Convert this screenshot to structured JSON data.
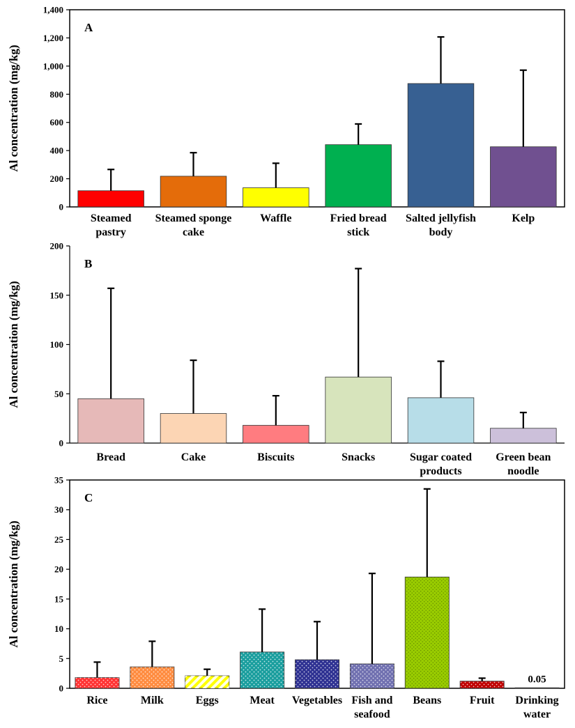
{
  "chart_data": [
    {
      "type": "bar",
      "panel_label": "A",
      "ylabel": "Al concentration (mg/kg)",
      "ylim": [
        0,
        1400
      ],
      "yticks": [
        0,
        200,
        400,
        600,
        800,
        1000,
        1200,
        1400
      ],
      "ytick_labels": [
        "0",
        "200",
        "400",
        "600",
        "800",
        "1,000",
        "1,200",
        "1,400"
      ],
      "categories": [
        [
          "Steamed",
          "pastry"
        ],
        [
          "Steamed sponge",
          "cake"
        ],
        [
          "Waffle"
        ],
        [
          "Fried bread",
          "stick"
        ],
        [
          "Salted jellyfish",
          "body"
        ],
        [
          "Kelp"
        ]
      ],
      "values": [
        115,
        218,
        136,
        442,
        876,
        427
      ],
      "error_upper": [
        266,
        385,
        310,
        589,
        1207,
        971
      ],
      "colors": [
        "#ff0000",
        "#e46c0a",
        "#ffff00",
        "#00b050",
        "#376092",
        "#705090"
      ],
      "patterns": [
        "solid",
        "solid",
        "solid",
        "solid",
        "solid",
        "solid"
      ],
      "box": "frame"
    },
    {
      "type": "bar",
      "panel_label": "B",
      "ylabel": "Al concentration (mg/kg)",
      "ylim": [
        0,
        200
      ],
      "yticks": [
        0,
        50,
        100,
        150,
        200
      ],
      "ytick_labels": [
        "0",
        "50",
        "100",
        "150",
        "200"
      ],
      "categories": [
        [
          "Bread"
        ],
        [
          "Cake"
        ],
        [
          "Biscuits"
        ],
        [
          "Snacks"
        ],
        [
          "Sugar coated",
          "products"
        ],
        [
          "Green bean",
          "noodle"
        ]
      ],
      "values": [
        45,
        30,
        18,
        67,
        46,
        15
      ],
      "error_upper": [
        157,
        84,
        48,
        177,
        83,
        31
      ],
      "colors": [
        "#e6b9b8",
        "#fcd5b4",
        "#ff7c80",
        "#d7e4bc",
        "#b7dde8",
        "#ccc0da"
      ],
      "patterns": [
        "solid",
        "solid",
        "solid",
        "solid",
        "solid",
        "solid"
      ],
      "box": "axes"
    },
    {
      "type": "bar",
      "panel_label": "C",
      "ylabel": "Al concentration (mg/kg)",
      "ylim": [
        0,
        35
      ],
      "yticks": [
        0,
        5,
        10,
        15,
        20,
        25,
        30,
        35
      ],
      "ytick_labels": [
        "0",
        "5",
        "10",
        "15",
        "20",
        "25",
        "30",
        "35"
      ],
      "categories": [
        [
          "Rice"
        ],
        [
          "Milk"
        ],
        [
          "Eggs"
        ],
        [
          "Meat"
        ],
        [
          "Vegetables"
        ],
        [
          "Fish and",
          "seafood"
        ],
        [
          "Beans"
        ],
        [
          "Fruit"
        ],
        [
          "Drinking",
          "water"
        ]
      ],
      "values": [
        1.8,
        3.6,
        2.1,
        6.1,
        4.8,
        4.1,
        18.7,
        1.2,
        0.05
      ],
      "error_upper": [
        4.4,
        7.9,
        3.2,
        13.3,
        11.2,
        19.3,
        33.5,
        1.7,
        0.05
      ],
      "colors": [
        "#ff3333",
        "#ff8c40",
        "#ffff00",
        "#1a9e9e",
        "#2e3192",
        "#7070b0",
        "#99cc00",
        "#c00000",
        "#ffffff"
      ],
      "patterns": [
        "dots",
        "dots",
        "diagonal",
        "dots",
        "dots",
        "dots",
        "dots",
        "dots",
        "solid"
      ],
      "data_labels": [
        "",
        "",
        "",
        "",
        "",
        "",
        "",
        "",
        "0.05"
      ],
      "box": "frame"
    }
  ]
}
